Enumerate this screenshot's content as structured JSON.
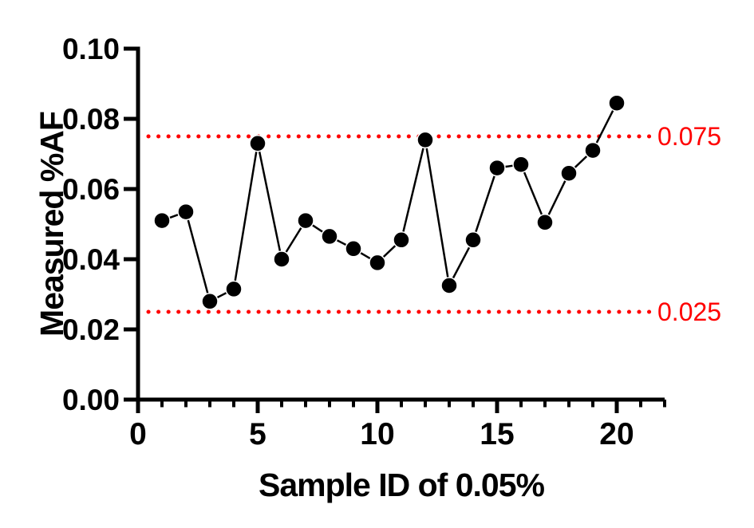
{
  "figure": {
    "background_color": "#FFFFFF"
  },
  "chart_data": {
    "type": "line",
    "title": "",
    "xlabel": "Sample ID of 0.05%",
    "ylabel": "Measured %AF",
    "x": [
      1,
      2,
      3,
      4,
      5,
      6,
      7,
      8,
      9,
      10,
      11,
      12,
      13,
      14,
      15,
      16,
      17,
      18,
      19,
      20
    ],
    "values": [
      0.051,
      0.0535,
      0.028,
      0.0315,
      0.073,
      0.04,
      0.051,
      0.0465,
      0.043,
      0.039,
      0.0455,
      0.074,
      0.0325,
      0.0455,
      0.066,
      0.067,
      0.0505,
      0.0645,
      0.071,
      0.0845
    ],
    "xlim": [
      0,
      22
    ],
    "ylim": [
      0.0,
      0.1
    ],
    "x_major_ticks": [
      0,
      5,
      10,
      15,
      20
    ],
    "x_major_tick_labels": [
      "0",
      "5",
      "10",
      "15",
      "20"
    ],
    "x_minor_tick_interval": 1,
    "y_ticks": [
      0.0,
      0.02,
      0.04,
      0.06,
      0.08,
      0.1
    ],
    "y_tick_labels": [
      "0.00",
      "0.02",
      "0.04",
      "0.06",
      "0.08",
      "0.10"
    ],
    "reference_lines": [
      {
        "value": 0.075,
        "label": "0.075",
        "style": "dotted"
      },
      {
        "value": 0.025,
        "label": "0.025",
        "style": "dotted"
      }
    ],
    "marker": "filled-circle",
    "grid": false,
    "legend_position": "none",
    "colors": {
      "series": "#000000",
      "axis": "#000000",
      "reference": "#FF0000"
    }
  }
}
